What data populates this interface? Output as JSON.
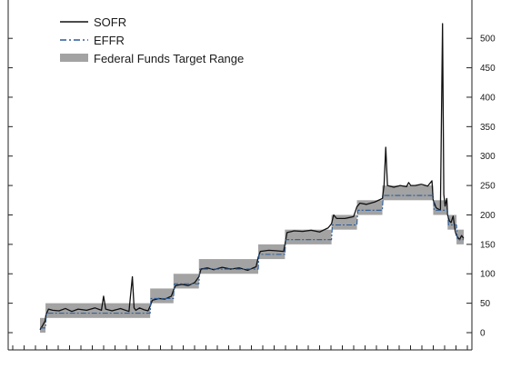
{
  "chart_data": {
    "type": "line",
    "title": "",
    "xlabel": "",
    "ylabel": "",
    "ylim": [
      0,
      550
    ],
    "yticks": [
      0,
      50,
      100,
      150,
      200,
      250,
      300,
      350,
      400,
      450,
      500
    ],
    "y_tick_labels": [
      "0",
      "50",
      "100",
      "150",
      "200",
      "250",
      "300",
      "350",
      "400",
      "450",
      "500"
    ],
    "y_axis_side": "right",
    "x_tick_count": 41,
    "grid": false,
    "legend_position": "top-left",
    "colors": {
      "SOFR": "#111111",
      "EFFR": "#2a5b9a",
      "target_range": "#a3a3a3"
    },
    "legend": [
      {
        "label": "SOFR",
        "style": "solid-line"
      },
      {
        "label": "EFFR",
        "style": "dash-dot-line"
      },
      {
        "label": "Federal Funds Target Range",
        "style": "filled-box"
      }
    ],
    "x_range": [
      0,
      100
    ],
    "target_range_steps": [
      {
        "x_start": 0.0,
        "x_end": 1.3,
        "lower": 0,
        "upper": 25
      },
      {
        "x_start": 1.3,
        "x_end": 26.0,
        "lower": 25,
        "upper": 50
      },
      {
        "x_start": 26.0,
        "x_end": 31.5,
        "lower": 50,
        "upper": 75
      },
      {
        "x_start": 31.5,
        "x_end": 37.5,
        "lower": 75,
        "upper": 100
      },
      {
        "x_start": 37.5,
        "x_end": 51.5,
        "lower": 100,
        "upper": 125
      },
      {
        "x_start": 51.5,
        "x_end": 57.8,
        "lower": 125,
        "upper": 150
      },
      {
        "x_start": 57.8,
        "x_end": 68.8,
        "lower": 150,
        "upper": 175
      },
      {
        "x_start": 68.8,
        "x_end": 74.8,
        "lower": 175,
        "upper": 200
      },
      {
        "x_start": 74.8,
        "x_end": 80.8,
        "lower": 200,
        "upper": 225
      },
      {
        "x_start": 80.8,
        "x_end": 92.8,
        "lower": 225,
        "upper": 250
      },
      {
        "x_start": 92.8,
        "x_end": 96.2,
        "lower": 200,
        "upper": 225
      },
      {
        "x_start": 96.2,
        "x_end": 98.3,
        "lower": 175,
        "upper": 200
      },
      {
        "x_start": 98.3,
        "x_end": 100.0,
        "lower": 150,
        "upper": 175
      }
    ],
    "series": [
      {
        "name": "SOFR",
        "x": [
          0.0,
          0.6,
          1.2,
          1.4,
          2.0,
          3.0,
          4.5,
          6.0,
          7.5,
          9.0,
          11.0,
          13.0,
          14.5,
          15.0,
          15.5,
          17.0,
          19.0,
          21.0,
          21.8,
          22.2,
          22.6,
          23.5,
          24.5,
          25.5,
          26.0,
          26.5,
          28.0,
          29.5,
          31.0,
          31.5,
          32.0,
          33.5,
          35.0,
          36.5,
          37.5,
          38.0,
          39.5,
          41.0,
          43.0,
          45.0,
          47.0,
          49.0,
          51.0,
          51.5,
          52.0,
          54.0,
          56.0,
          57.5,
          57.8,
          58.3,
          60.0,
          62.0,
          64.0,
          66.0,
          68.0,
          68.8,
          69.3,
          70.0,
          72.0,
          74.0,
          74.8,
          75.5,
          77.0,
          79.0,
          80.8,
          81.2,
          81.6,
          82.0,
          83.5,
          85.0,
          86.5,
          87.0,
          87.5,
          88.5,
          90.0,
          91.5,
          92.5,
          92.8,
          93.5,
          94.5,
          95.0,
          95.3,
          95.6,
          96.0,
          96.2,
          96.6,
          97.0,
          97.5,
          98.0,
          98.3,
          99.0,
          99.5,
          100.0
        ],
        "y": [
          5,
          12,
          20,
          30,
          40,
          38,
          37,
          41,
          36,
          40,
          38,
          42,
          38,
          62,
          40,
          37,
          41,
          36,
          95,
          42,
          38,
          42,
          39,
          37,
          45,
          55,
          58,
          57,
          62,
          72,
          80,
          82,
          80,
          85,
          95,
          108,
          110,
          107,
          111,
          108,
          110,
          106,
          112,
          128,
          138,
          140,
          139,
          138,
          150,
          170,
          173,
          172,
          174,
          171,
          178,
          185,
          200,
          194,
          194,
          197,
          214,
          220,
          218,
          222,
          228,
          250,
          315,
          250,
          247,
          250,
          248,
          255,
          250,
          250,
          252,
          249,
          258,
          225,
          212,
          208,
          525,
          235,
          215,
          228,
          200,
          190,
          187,
          198,
          172,
          165,
          158,
          165,
          160
        ],
        "color": "#111111"
      },
      {
        "name": "EFFR",
        "x": [
          0.0,
          1.3,
          1.5,
          26.0,
          26.2,
          31.5,
          31.7,
          37.5,
          37.7,
          51.5,
          51.7,
          57.8,
          58.0,
          68.8,
          69.0,
          74.8,
          75.0,
          80.8,
          81.0,
          92.8,
          93.0,
          96.2,
          96.4,
          98.3,
          98.5,
          100.0
        ],
        "y": [
          8,
          8,
          33,
          33,
          58,
          58,
          83,
          83,
          108,
          108,
          133,
          133,
          158,
          158,
          183,
          183,
          208,
          208,
          233,
          233,
          208,
          208,
          183,
          183,
          158,
          158
        ],
        "color": "#2a5b9a"
      }
    ]
  }
}
